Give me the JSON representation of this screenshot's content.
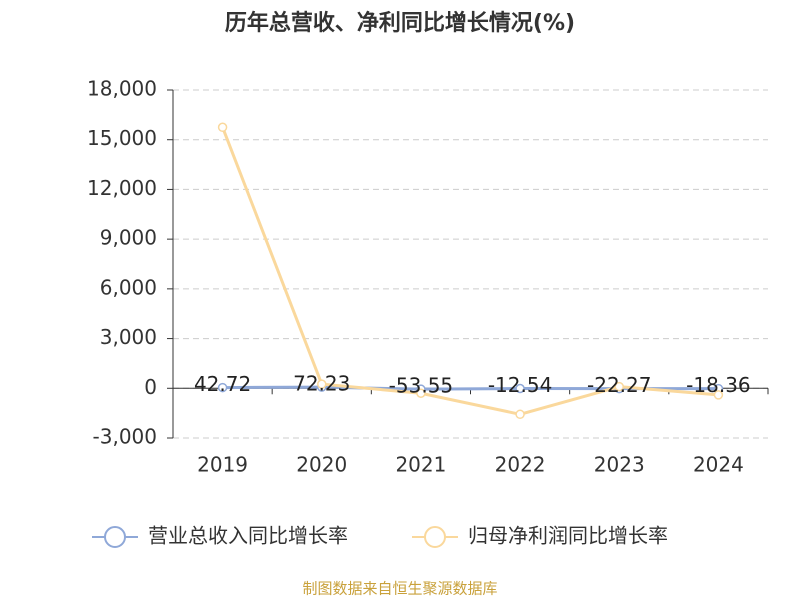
{
  "chart_data": {
    "type": "line",
    "title": "历年总营收、净利同比增长情况(%)",
    "categories": [
      "2019",
      "2020",
      "2021",
      "2022",
      "2023",
      "2024"
    ],
    "series": [
      {
        "name": "营业总收入同比增长率",
        "color": "#8fa8d8",
        "values": [
          42.72,
          72.23,
          -53.55,
          -12.54,
          -22.27,
          -18.36
        ]
      },
      {
        "name": "归母净利润同比增长率",
        "color": "#fad89c",
        "values": [
          15750,
          250,
          -300,
          -1570,
          100,
          -400
        ]
      }
    ],
    "ylim": [
      -3000,
      18000
    ],
    "yticks": [
      {
        "value": -3000,
        "label": "-3,000"
      },
      0,
      {
        "value": 3000,
        "label": "3,000"
      },
      {
        "value": 6000,
        "label": "6,000"
      },
      {
        "value": 9000,
        "label": "9,000"
      },
      {
        "value": 12000,
        "label": "12,000"
      },
      {
        "value": 15000,
        "label": "15,000"
      },
      {
        "value": 18000,
        "label": "18,000"
      }
    ],
    "grid": true,
    "legend": "bottom",
    "source": "制图数据来自恒生聚源数据库"
  }
}
